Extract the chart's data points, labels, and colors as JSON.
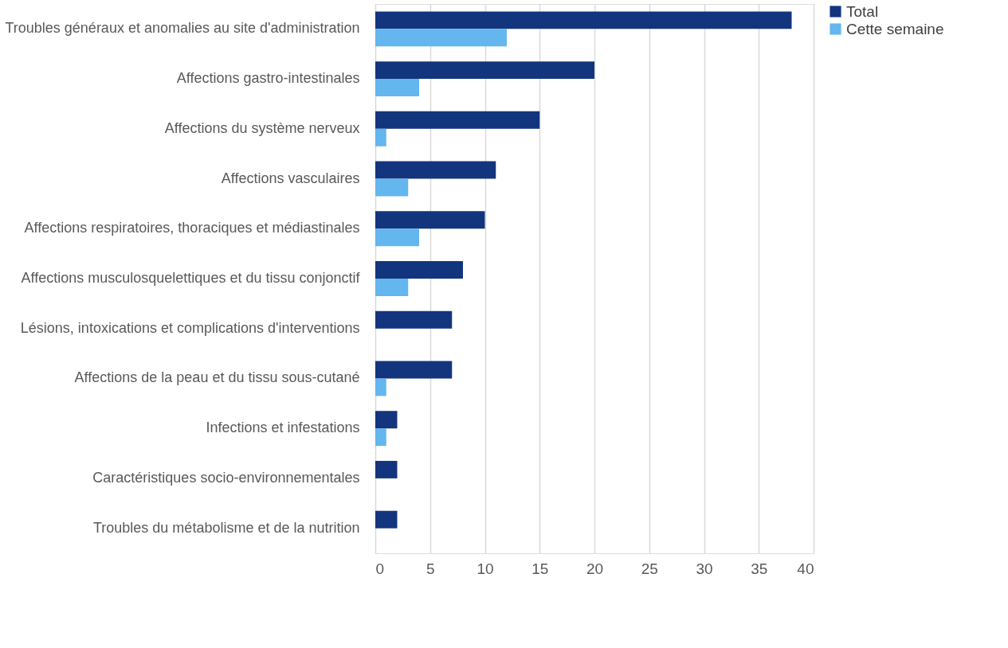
{
  "chart_data": {
    "type": "bar",
    "orientation": "horizontal",
    "categories": [
      "Troubles généraux et anomalies au site d'administration",
      "Affections gastro-intestinales",
      "Affections du système nerveux",
      "Affections vasculaires",
      "Affections respiratoires, thoraciques et médiastinales",
      "Affections musculosquelettiques et du tissu conjonctif",
      "Lésions, intoxications et complications d'interventions",
      "Affections de la peau et du tissu sous-cutané",
      "Infections et infestations",
      "Caractéristiques socio-environnementales",
      "Troubles du métabolisme et de la nutrition"
    ],
    "series": [
      {
        "name": "Total",
        "color": "#12357e",
        "values": [
          38,
          20,
          15,
          11,
          10,
          8,
          7,
          7,
          2,
          2,
          2
        ]
      },
      {
        "name": "Cette semaine",
        "color": "#63b6ee",
        "values": [
          12,
          4,
          1,
          3,
          4,
          3,
          0,
          1,
          1,
          0,
          0
        ]
      }
    ],
    "xlim": [
      0,
      40
    ],
    "xticks": [
      0,
      5,
      10,
      15,
      20,
      25,
      30,
      35,
      40
    ],
    "grid": "x",
    "legend": "right"
  }
}
